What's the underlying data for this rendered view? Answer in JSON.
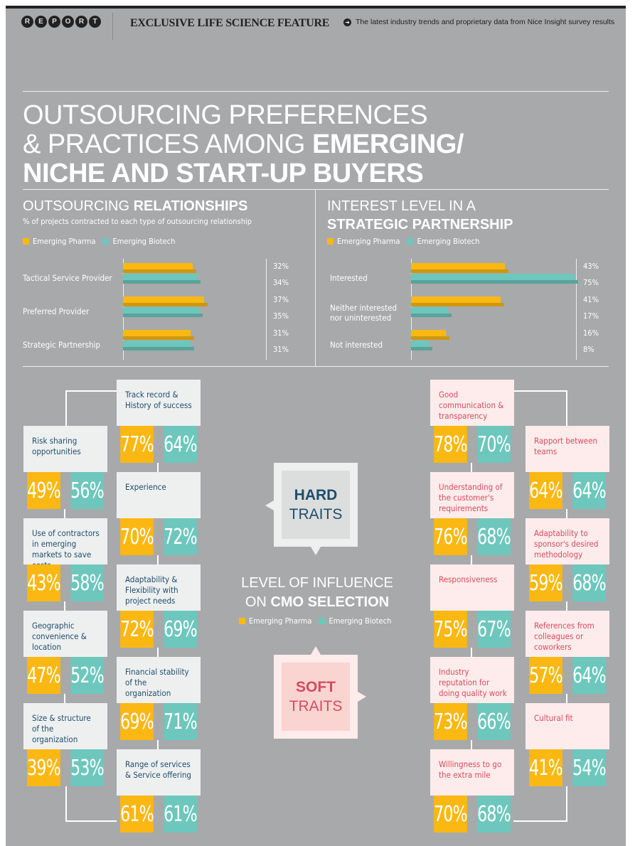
{
  "header": {
    "report_letters": [
      "R",
      "E",
      "P",
      "O",
      "R",
      "T"
    ],
    "title": "EXCLUSIVE LIFE SCIENCE FEATURE",
    "subtitle": "The latest industry trends and proprietary data from Nice Insight survey results",
    "arrow_icon": "arrow-right-circle-icon"
  },
  "main_title": {
    "line1": "OUTSOURCING PREFERENCES",
    "line2_light": "& PRACTICES AMONG ",
    "line2_bold": "EMERGING/",
    "line3_bold": "NICHE AND START-UP BUYERS"
  },
  "colors": {
    "pharma": "#fbb813",
    "biotech": "#6dc7bd",
    "hard_text": "#1e4d6c",
    "soft_text": "#d34c60",
    "background": "#a8a9ab"
  },
  "legend": {
    "pharma": "Emerging Pharma",
    "biotech": "Emerging Biotech"
  },
  "chart_data": [
    {
      "type": "bar",
      "orientation": "horizontal",
      "title_light": "OUTSOURCING ",
      "title_bold": "RELATIONSHIPS",
      "subtitle": "% of projects contracted to each type of outsourcing relationship",
      "categories": [
        "Tactical Service Provider",
        "Preferred Provider",
        "Strategic Partnership"
      ],
      "series": [
        {
          "name": "Emerging Pharma",
          "values": [
            32,
            37,
            31
          ]
        },
        {
          "name": "Emerging Biotech",
          "values": [
            34,
            35,
            31
          ]
        }
      ],
      "unit": "%",
      "legend_placement": "top-left"
    },
    {
      "type": "bar",
      "orientation": "horizontal",
      "title_light": "INTEREST LEVEL IN A",
      "title_bold": "STRATEGIC PARTNERSHIP",
      "categories": [
        "Interested",
        "Neither interested nor uninterested",
        "Not interested"
      ],
      "series": [
        {
          "name": "Emerging Pharma",
          "values": [
            43,
            41,
            16
          ]
        },
        {
          "name": "Emerging Biotech",
          "values": [
            75,
            17,
            8
          ]
        }
      ],
      "unit": "%",
      "legend_placement": "top-left"
    }
  ],
  "influence": {
    "title_light": "LEVEL OF INFLUENCE",
    "title_on": "ON ",
    "title_bold": "CMO SELECTION",
    "hard_label_bold": "HARD",
    "hard_label": "TRAITS",
    "soft_label_bold": "SOFT",
    "soft_label": "TRAITS",
    "hard_col1": [
      {
        "label": "Risk sharing opportunities",
        "pharma": "49%",
        "biotech": "56%"
      },
      {
        "label": "Use of contractors in emerging markets to save costs",
        "pharma": "43%",
        "biotech": "58%"
      },
      {
        "label": "Geographic convenience & location",
        "pharma": "47%",
        "biotech": "52%"
      },
      {
        "label": "Size & structure of the organization",
        "pharma": "39%",
        "biotech": "53%"
      }
    ],
    "hard_col2": [
      {
        "label": "Track record & History of success",
        "pharma": "77%",
        "biotech": "64%"
      },
      {
        "label": "Experience",
        "pharma": "70%",
        "biotech": "72%"
      },
      {
        "label": "Adaptability & Flexibility with project needs",
        "pharma": "72%",
        "biotech": "69%"
      },
      {
        "label": "Financial stability of the organization",
        "pharma": "69%",
        "biotech": "71%"
      },
      {
        "label": "Range of services & Service offering",
        "pharma": "61%",
        "biotech": "61%"
      }
    ],
    "soft_col1": [
      {
        "label": "Good communication & transparency",
        "pharma": "78%",
        "biotech": "70%"
      },
      {
        "label": "Understanding of the customer's requirements",
        "pharma": "76%",
        "biotech": "68%"
      },
      {
        "label": "Responsiveness",
        "pharma": "75%",
        "biotech": "67%"
      },
      {
        "label": "Industry reputation for doing quality work",
        "pharma": "73%",
        "biotech": "66%"
      },
      {
        "label": "Willingness to go the extra mile",
        "pharma": "70%",
        "biotech": "68%"
      }
    ],
    "soft_col2": [
      {
        "label": "Rapport between teams",
        "pharma": "64%",
        "biotech": "64%"
      },
      {
        "label": "Adaptability to sponsor's desired methodology",
        "pharma": "59%",
        "biotech": "68%"
      },
      {
        "label": "References from colleagues or coworkers",
        "pharma": "57%",
        "biotech": "64%"
      },
      {
        "label": "Cultural fit",
        "pharma": "41%",
        "biotech": "54%"
      }
    ]
  }
}
